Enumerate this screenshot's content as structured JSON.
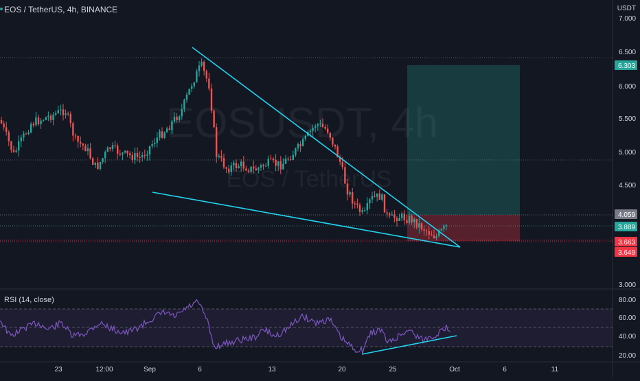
{
  "header": {
    "symbol_line": "EOS / TetherUS, 4h, BINANCE",
    "currency": "USDT"
  },
  "watermark": {
    "ticker": "EOSUSDT, 4h",
    "name": "EOS / TetherUS"
  },
  "price_axis": {
    "ticks": [
      "7.000",
      "6.500",
      "6.000",
      "5.500",
      "5.000",
      "4.500",
      "3.000"
    ]
  },
  "price_badges": [
    {
      "label": "6.303",
      "color": "#26a69a",
      "text_color": "#ffffff"
    },
    {
      "label": "4.059",
      "color": "#787b86",
      "text_color": "#ffffff"
    },
    {
      "label": "3.889",
      "color": "#26a69a",
      "text_color": "#ffffff"
    },
    {
      "label": "3.663",
      "color": "#f23645",
      "text_color": "#ffffff"
    },
    {
      "label": "3.649",
      "color": "#f23645",
      "text_color": "#ffffff"
    }
  ],
  "rsi": {
    "title": "RSI (14, close)",
    "ticks": [
      "80.00",
      "60.00",
      "40.00",
      "20.00"
    ],
    "line_color": "#7e57c2"
  },
  "time_axis": {
    "ticks": [
      "23",
      "12:00",
      "Sep",
      "6",
      "13",
      "20",
      "25",
      "Oct",
      "6",
      "11"
    ]
  },
  "colors": {
    "up": "#26a69a",
    "down": "#ef5350",
    "trendline": "#22d3ee",
    "background": "#131722"
  }
}
